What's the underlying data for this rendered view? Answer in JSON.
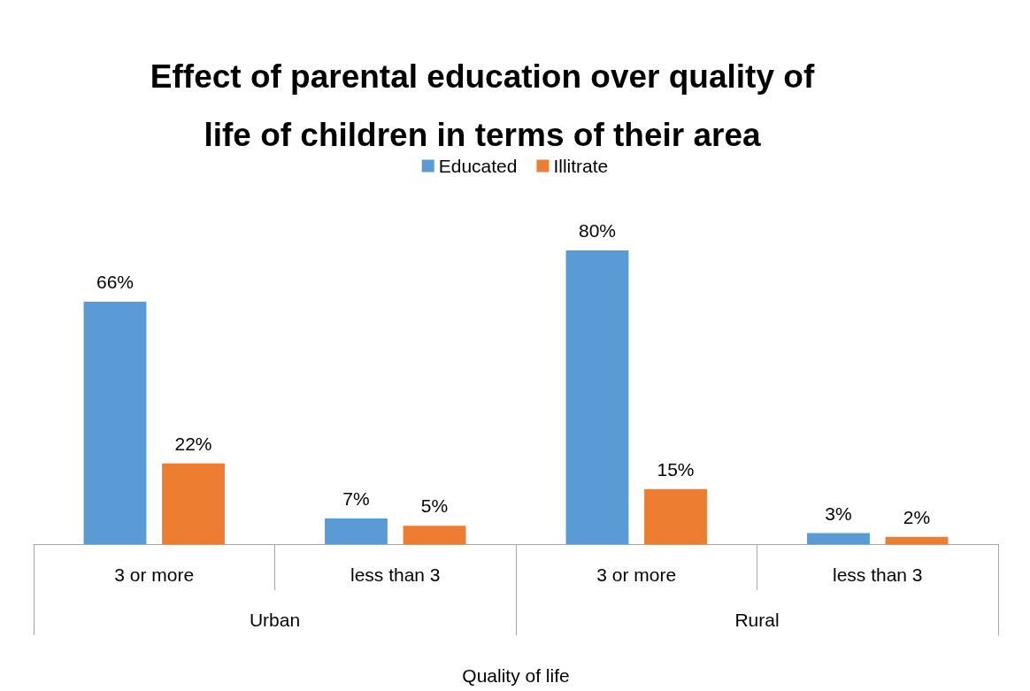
{
  "chart_data": {
    "type": "bar",
    "title": "Effect of parental education over quality of\nlife of children in terms of their area",
    "xlabel": "Quality of life",
    "categories": [
      "3 or more",
      "less than 3",
      "3 or more",
      "less than 3"
    ],
    "annotations": [
      "Urban",
      "Rural"
    ],
    "series": [
      {
        "name": "Educated",
        "color": "#5b9bd5",
        "values": [
          66,
          7,
          80,
          3
        ],
        "value_labels": [
          "66%",
          "7%",
          "80%",
          "3%"
        ]
      },
      {
        "name": "Illitrate",
        "color": "#ed7d31",
        "values": [
          22,
          5,
          15,
          2
        ],
        "value_labels": [
          "22%",
          "5%",
          "15%",
          "2%"
        ]
      }
    ],
    "legend": "top"
  }
}
